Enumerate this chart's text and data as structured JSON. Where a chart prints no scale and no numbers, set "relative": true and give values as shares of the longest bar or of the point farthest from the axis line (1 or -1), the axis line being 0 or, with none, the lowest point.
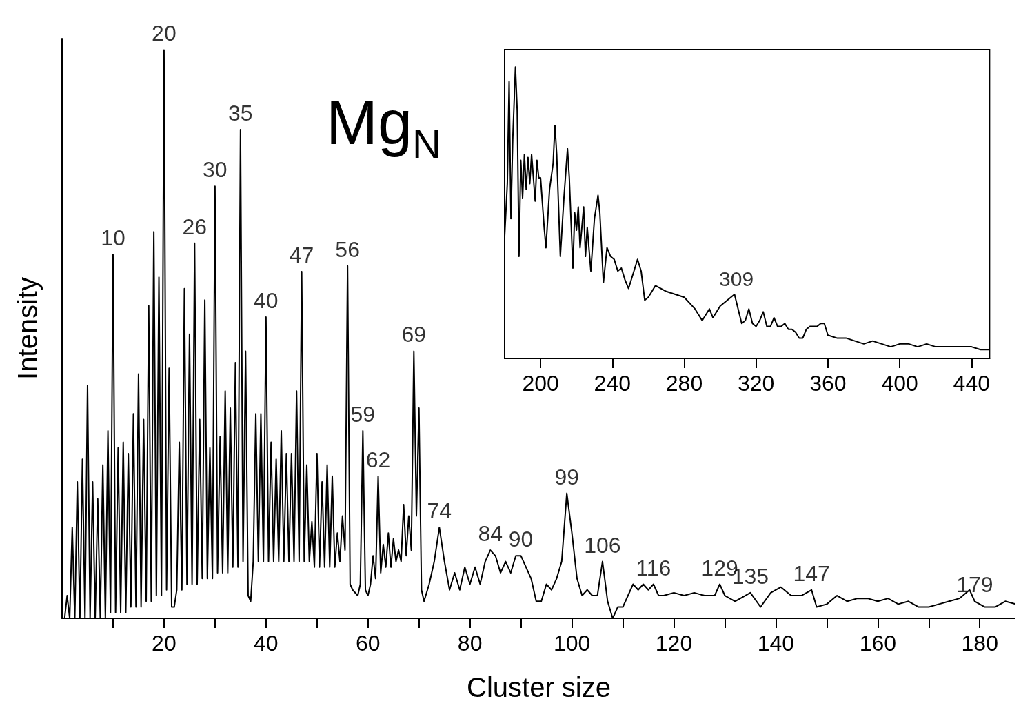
{
  "chart_data": [
    {
      "type": "line",
      "title": "Mg$_{N}$",
      "xlabel": "Cluster size",
      "ylabel": "Intensity",
      "relative": true,
      "xlim": [
        0,
        187
      ],
      "xticks": [
        {
          "value": 10,
          "label": null
        },
        20,
        {
          "value": 30,
          "label": null
        },
        40,
        {
          "value": 50,
          "label": null
        },
        60,
        {
          "value": 70,
          "label": null
        },
        80,
        {
          "value": 90,
          "label": null
        },
        100,
        {
          "value": 110,
          "label": null
        },
        120,
        {
          "value": 130,
          "label": null
        },
        140,
        {
          "value": 150,
          "label": null
        },
        160,
        {
          "value": 170,
          "label": null
        },
        180
      ],
      "series": [
        {
          "color": "#000000",
          "x": [
            0.5,
            1,
            1.5,
            2,
            2.5,
            3,
            3.5,
            4,
            4.5,
            5,
            5.5,
            6,
            6.5,
            7,
            7.5,
            8,
            8.5,
            9,
            9.5,
            10,
            10.5,
            11,
            11.5,
            12,
            12.5,
            13,
            13.5,
            14,
            14.5,
            15,
            15.5,
            16,
            16.5,
            17,
            17.5,
            18,
            18.5,
            19,
            19.5,
            20,
            20.5,
            21,
            21.5,
            22,
            22.5,
            23,
            23.5,
            24,
            24.5,
            25,
            25.5,
            26,
            26.5,
            27,
            27.5,
            28,
            28.5,
            29,
            29.5,
            30,
            30.5,
            31,
            31.5,
            32,
            32.5,
            33,
            33.5,
            34,
            34.5,
            35,
            35.5,
            36,
            36.5,
            37,
            37.5,
            38,
            38.5,
            39,
            39.5,
            40,
            40.5,
            41,
            41.5,
            42,
            42.5,
            43,
            43.5,
            44,
            44.5,
            45,
            45.5,
            46,
            46.5,
            47,
            47.5,
            48,
            48.5,
            49,
            49.5,
            50,
            50.5,
            51,
            51.5,
            52,
            52.5,
            53,
            53.5,
            54,
            54.5,
            55,
            55.5,
            56,
            56.5,
            57,
            58,
            58.5,
            59,
            59.5,
            60,
            60.5,
            61,
            61.5,
            62,
            62.5,
            63,
            63.5,
            64,
            64.5,
            65,
            65.5,
            66,
            66.5,
            67,
            67.5,
            68,
            68.5,
            69,
            69.5,
            70,
            70.5,
            71,
            72,
            73,
            74,
            75,
            76,
            77,
            78,
            79,
            80,
            81,
            82,
            83,
            84,
            85,
            86,
            87,
            88,
            89,
            90,
            91,
            92,
            93,
            94,
            95,
            96,
            97,
            98,
            99,
            100,
            101,
            102,
            103,
            104,
            105,
            106,
            107,
            108,
            109,
            110,
            111,
            112,
            113,
            114,
            115,
            116,
            117,
            118,
            120,
            122,
            124,
            126,
            128,
            129,
            130,
            132,
            134,
            135,
            137,
            139,
            141,
            143,
            145,
            147,
            148,
            150,
            152,
            154,
            156,
            158,
            160,
            162,
            164,
            166,
            168,
            170,
            172,
            174,
            176,
            178,
            179,
            181,
            183,
            185,
            187
          ],
          "values": [
            0.0,
            0.04,
            0.0,
            0.16,
            0.0,
            0.24,
            0.0,
            0.28,
            0.0,
            0.41,
            0.0,
            0.24,
            0.0,
            0.21,
            0.0,
            0.27,
            0.0,
            0.33,
            0.01,
            0.64,
            0.01,
            0.3,
            0.01,
            0.31,
            0.01,
            0.29,
            0.02,
            0.36,
            0.02,
            0.43,
            0.02,
            0.35,
            0.03,
            0.55,
            0.03,
            0.68,
            0.04,
            0.6,
            0.04,
            1.0,
            0.05,
            0.44,
            0.02,
            0.02,
            0.05,
            0.31,
            0.05,
            0.58,
            0.06,
            0.5,
            0.06,
            0.66,
            0.06,
            0.35,
            0.07,
            0.56,
            0.07,
            0.3,
            0.07,
            0.76,
            0.08,
            0.32,
            0.08,
            0.4,
            0.08,
            0.37,
            0.09,
            0.45,
            0.09,
            0.86,
            0.1,
            0.47,
            0.04,
            0.03,
            0.1,
            0.36,
            0.1,
            0.36,
            0.1,
            0.53,
            0.1,
            0.31,
            0.1,
            0.28,
            0.1,
            0.33,
            0.1,
            0.29,
            0.1,
            0.29,
            0.1,
            0.4,
            0.1,
            0.61,
            0.1,
            0.27,
            0.1,
            0.17,
            0.09,
            0.29,
            0.09,
            0.24,
            0.09,
            0.27,
            0.09,
            0.25,
            0.09,
            0.15,
            0.1,
            0.18,
            0.12,
            0.62,
            0.06,
            0.05,
            0.04,
            0.06,
            0.33,
            0.05,
            0.04,
            0.06,
            0.11,
            0.07,
            0.25,
            0.08,
            0.13,
            0.09,
            0.15,
            0.09,
            0.14,
            0.1,
            0.12,
            0.1,
            0.2,
            0.11,
            0.18,
            0.12,
            0.47,
            0.18,
            0.37,
            0.05,
            0.03,
            0.06,
            0.1,
            0.16,
            0.1,
            0.05,
            0.08,
            0.05,
            0.09,
            0.06,
            0.09,
            0.06,
            0.1,
            0.12,
            0.11,
            0.08,
            0.1,
            0.08,
            0.11,
            0.11,
            0.09,
            0.07,
            0.03,
            0.03,
            0.06,
            0.05,
            0.07,
            0.1,
            0.22,
            0.15,
            0.07,
            0.04,
            0.05,
            0.04,
            0.04,
            0.1,
            0.03,
            0.0,
            0.02,
            0.02,
            0.04,
            0.06,
            0.05,
            0.06,
            0.05,
            0.06,
            0.04,
            0.04,
            0.045,
            0.04,
            0.045,
            0.04,
            0.04,
            0.06,
            0.04,
            0.03,
            0.04,
            0.045,
            0.02,
            0.045,
            0.055,
            0.04,
            0.04,
            0.05,
            0.02,
            0.025,
            0.04,
            0.03,
            0.035,
            0.035,
            0.03,
            0.035,
            0.025,
            0.03,
            0.02,
            0.02,
            0.025,
            0.03,
            0.035,
            0.05,
            0.03,
            0.02,
            0.02,
            0.03,
            0.025
          ]
        }
      ],
      "annotations": [
        {
          "text": "10",
          "x": 10,
          "y": 0.64
        },
        {
          "text": "20",
          "x": 20,
          "y": 1.0
        },
        {
          "text": "26",
          "x": 26,
          "y": 0.66
        },
        {
          "text": "30",
          "x": 30,
          "y": 0.76
        },
        {
          "text": "35",
          "x": 35,
          "y": 0.86
        },
        {
          "text": "40",
          "x": 40,
          "y": 0.53
        },
        {
          "text": "47",
          "x": 47,
          "y": 0.61
        },
        {
          "text": "56",
          "x": 56,
          "y": 0.62
        },
        {
          "text": "59",
          "x": 59,
          "y": 0.33
        },
        {
          "text": "62",
          "x": 62,
          "y": 0.25
        },
        {
          "text": "69",
          "x": 69,
          "y": 0.47
        },
        {
          "text": "74",
          "x": 74,
          "y": 0.16
        },
        {
          "text": "84",
          "x": 84,
          "y": 0.12
        },
        {
          "text": "90",
          "x": 90,
          "y": 0.11
        },
        {
          "text": "99",
          "x": 99,
          "y": 0.22
        },
        {
          "text": "106",
          "x": 106,
          "y": 0.1
        },
        {
          "text": "116",
          "x": 116,
          "y": 0.06
        },
        {
          "text": "129",
          "x": 129,
          "y": 0.06
        },
        {
          "text": "135",
          "x": 135,
          "y": 0.045
        },
        {
          "text": "147",
          "x": 147,
          "y": 0.05
        },
        {
          "text": "179",
          "x": 179,
          "y": 0.03
        }
      ]
    },
    {
      "type": "line",
      "relative": true,
      "xlim": [
        180,
        450
      ],
      "xticks": [
        200,
        240,
        280,
        320,
        360,
        400,
        440
      ],
      "series": [
        {
          "color": "#000000",
          "x": [
            180,
            181.5,
            182.5,
            183.5,
            184.5,
            186,
            187,
            188,
            189,
            190,
            191,
            192,
            193,
            194,
            195,
            196,
            197,
            198,
            199,
            200,
            202,
            203,
            205,
            207,
            208,
            209,
            211,
            213,
            215,
            216,
            218,
            219,
            220,
            221,
            222,
            224,
            225,
            226,
            228,
            230,
            232,
            233,
            235,
            237,
            239,
            241,
            243,
            245,
            247,
            249,
            252,
            254,
            256,
            258,
            260,
            264,
            270,
            280,
            286,
            290,
            294,
            296,
            300,
            304,
            308,
            310,
            312,
            314,
            316,
            318,
            320,
            322,
            324,
            326,
            328,
            330,
            332,
            334,
            336,
            338,
            340,
            342,
            344,
            346,
            348,
            350,
            352,
            354,
            356,
            358,
            360,
            365,
            370,
            375,
            380,
            385,
            390,
            395,
            400,
            405,
            410,
            415,
            420,
            425,
            430,
            435,
            440,
            445,
            450
          ],
          "values": [
            0.42,
            0.6,
            0.95,
            0.48,
            0.75,
            1.0,
            0.85,
            0.35,
            0.68,
            0.55,
            0.7,
            0.58,
            0.69,
            0.6,
            0.7,
            0.62,
            0.54,
            0.68,
            0.62,
            0.62,
            0.45,
            0.38,
            0.58,
            0.67,
            0.8,
            0.7,
            0.35,
            0.55,
            0.72,
            0.62,
            0.31,
            0.5,
            0.44,
            0.52,
            0.38,
            0.52,
            0.35,
            0.45,
            0.3,
            0.48,
            0.56,
            0.5,
            0.26,
            0.38,
            0.35,
            0.34,
            0.3,
            0.31,
            0.27,
            0.24,
            0.3,
            0.34,
            0.3,
            0.2,
            0.21,
            0.25,
            0.23,
            0.21,
            0.17,
            0.13,
            0.17,
            0.14,
            0.18,
            0.2,
            0.22,
            0.17,
            0.12,
            0.13,
            0.17,
            0.12,
            0.11,
            0.13,
            0.16,
            0.11,
            0.11,
            0.14,
            0.11,
            0.11,
            0.12,
            0.1,
            0.1,
            0.09,
            0.07,
            0.07,
            0.1,
            0.11,
            0.11,
            0.11,
            0.12,
            0.12,
            0.08,
            0.07,
            0.07,
            0.06,
            0.05,
            0.06,
            0.05,
            0.04,
            0.05,
            0.05,
            0.04,
            0.05,
            0.04,
            0.04,
            0.04,
            0.04,
            0.04,
            0.03,
            0.03
          ]
        }
      ],
      "annotations": [
        {
          "text": "309",
          "x": 309,
          "y": 0.22
        }
      ]
    }
  ]
}
